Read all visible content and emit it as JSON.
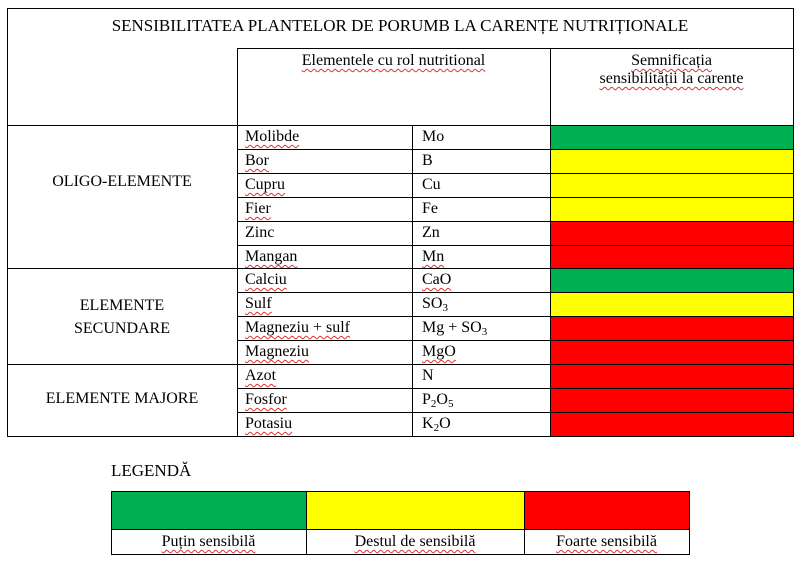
{
  "title": "SENSIBILITATEA PLANTELOR DE PORUMB LA CARENȚE NUTRIȚIONALE",
  "header": {
    "col_elements": "Elementele cu rol nutritional",
    "col_meaning_line1": "Semnificația",
    "col_meaning_line2": "sensibilității la carente"
  },
  "groups": [
    {
      "label_lines": [
        "OLIGO-ELEMENTE"
      ]
    },
    {
      "label_lines": [
        "ELEMENTE",
        "SECUNDARE"
      ]
    },
    {
      "label_lines": [
        "ELEMENTE MAJORE"
      ]
    }
  ],
  "rows": [
    {
      "name": "Molibde",
      "symbol": "Mo",
      "sensitivity": "Puțin sensibilă"
    },
    {
      "name": "Bor",
      "symbol": "B",
      "sensitivity": "Destul de sensibilă"
    },
    {
      "name": "Cupru",
      "symbol": "Cu",
      "sensitivity": "Destul de sensibilă"
    },
    {
      "name": "Fier",
      "symbol": "Fe",
      "sensitivity": "Destul de sensibilă"
    },
    {
      "name": "Zinc",
      "symbol": "Zn",
      "sensitivity": "Foarte sensibilă"
    },
    {
      "name": "Mangan",
      "symbol": "Mn",
      "sensitivity": "Foarte sensibilă"
    },
    {
      "name": "Calciu",
      "symbol": "CaO",
      "sensitivity": "Puțin sensibilă"
    },
    {
      "name": "Sulf",
      "symbol": "SO",
      "symbol_sub": "3",
      "sensitivity": "Destul de sensibilă"
    },
    {
      "name": "Magneziu + sulf",
      "symbol": "Mg + SO",
      "symbol_sub": "3",
      "sensitivity": "Foarte sensibilă"
    },
    {
      "name": "Magneziu",
      "symbol": "MgO",
      "sensitivity": "Foarte sensibilă"
    },
    {
      "name": "Azot",
      "symbol": "N",
      "sensitivity": "Foarte sensibilă"
    },
    {
      "name": "Fosfor",
      "symbol": "P",
      "symbol_sub": "2",
      "symbol_b": "O",
      "symbol_sub_b": "5",
      "sensitivity": "Foarte sensibilă"
    },
    {
      "name": "Potasiu",
      "symbol": "K",
      "symbol_sub": "2",
      "symbol_b": "O",
      "sensitivity": "Foarte sensibilă"
    }
  ],
  "legend": {
    "title": "LEGENDĂ",
    "items": [
      {
        "label": "Puțin sensibilă",
        "color": "#00b050"
      },
      {
        "label": "Destul de sensibilă",
        "color": "#ffff00"
      },
      {
        "label": "Foarte sensibilă",
        "color": "#ff0000"
      }
    ]
  }
}
